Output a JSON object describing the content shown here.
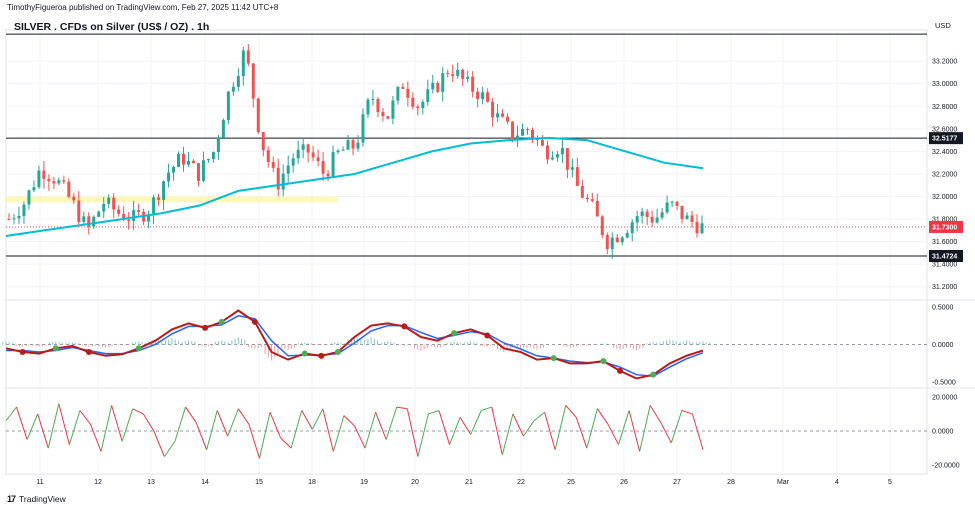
{
  "header": {
    "published": "TimothyFigueroa published on TradingView.com, Feb 27, 2025 11:42 UTC+8",
    "title": "SILVER . CFDs on Silver (US$ / OZ) . 1h",
    "currency": "USD"
  },
  "footer": {
    "brand": "TradingView",
    "logo_glyph": "17"
  },
  "colors": {
    "up": "#26a69a",
    "down": "#ef5350",
    "ma": "#00bcd4",
    "level": "#131722",
    "zone": "#fff59d",
    "price_tag": "#f23645",
    "osc_green": "#4caf50",
    "osc_red": "#b71c1c",
    "osc_blue": "#2962ff"
  },
  "chart_data": [
    {
      "type": "candlestick",
      "title": "SILVER . CFDs on Silver (US$ / OZ) . 1h",
      "x_ticks": [
        "11",
        "12",
        "13",
        "14",
        "15",
        "18",
        "19",
        "20",
        "21",
        "22",
        "25",
        "26",
        "27",
        "28",
        "Mar",
        "4",
        "5"
      ],
      "y_ticks": [
        "33.2000",
        "33.0000",
        "32.8000",
        "32.6000",
        "32.4000",
        "32.2000",
        "32.0000",
        "31.8000",
        "31.6000",
        "31.4000",
        "31.2000"
      ],
      "ylim": [
        31.1,
        33.45
      ],
      "last_price": 31.73,
      "last_price_label": "31.7300",
      "levels": [
        {
          "value": 33.44,
          "label": ""
        },
        {
          "value": 32.5177,
          "label": "32.5177"
        },
        {
          "value": 31.4724,
          "label": "31.4724"
        }
      ],
      "zone": {
        "from": 31.95,
        "to": 32.0
      },
      "close_path": [
        31.8,
        31.95,
        32.25,
        32.15,
        31.95,
        31.7,
        31.95,
        31.85,
        31.8,
        31.9,
        32.2,
        32.35,
        32.2,
        32.4,
        32.95,
        33.3,
        32.5,
        32.1,
        32.35,
        32.4,
        32.2,
        32.4,
        32.45,
        32.9,
        32.7,
        33.0,
        32.8,
        32.95,
        33.15,
        33.0,
        32.9,
        32.7,
        32.55,
        32.6,
        32.4,
        32.45,
        32.1,
        31.9,
        31.6,
        31.7,
        31.85,
        31.8,
        31.93,
        31.8,
        31.73
      ],
      "ma_path": [
        31.65,
        31.7,
        31.75,
        31.8,
        31.85,
        31.92,
        32.05,
        32.1,
        32.15,
        32.2,
        32.3,
        32.4,
        32.47,
        32.5,
        32.52,
        32.5,
        32.4,
        32.3,
        32.25
      ]
    },
    {
      "type": "line",
      "y_ticks": [
        "0.5000",
        "0.0000",
        "-0.5000"
      ],
      "ylim": [
        -0.55,
        0.55
      ],
      "series": [
        {
          "values": [
            -0.05,
            -0.1,
            -0.12,
            -0.05,
            -0.02,
            -0.1,
            -0.15,
            -0.13,
            -0.05,
            0.05,
            0.2,
            0.28,
            0.22,
            0.3,
            0.45,
            0.3,
            -0.1,
            -0.2,
            -0.12,
            -0.15,
            -0.1,
            0.1,
            0.25,
            0.28,
            0.24,
            0.1,
            0.05,
            0.15,
            0.2,
            0.12,
            -0.05,
            -0.1,
            -0.2,
            -0.18,
            -0.25,
            -0.25,
            -0.22,
            -0.35,
            -0.45,
            -0.4,
            -0.25,
            -0.15,
            -0.08
          ]
        },
        {
          "values": [
            -0.08,
            -0.08,
            -0.1,
            -0.08,
            -0.04,
            -0.08,
            -0.12,
            -0.12,
            -0.08,
            0.0,
            0.14,
            0.24,
            0.24,
            0.26,
            0.38,
            0.34,
            0.05,
            -0.15,
            -0.14,
            -0.14,
            -0.12,
            0.02,
            0.18,
            0.25,
            0.25,
            0.16,
            0.08,
            0.12,
            0.17,
            0.14,
            0.02,
            -0.06,
            -0.15,
            -0.18,
            -0.22,
            -0.24,
            -0.23,
            -0.3,
            -0.4,
            -0.42,
            -0.3,
            -0.19,
            -0.11
          ]
        }
      ]
    },
    {
      "type": "line",
      "y_ticks": [
        "20.0000",
        "0.0000",
        "-20.0000"
      ],
      "ylim": [
        -24,
        24
      ],
      "series": [
        {
          "values": [
            6,
            14,
            -5,
            10,
            -10,
            16,
            -8,
            12,
            4,
            -12,
            15,
            -6,
            13,
            10,
            0,
            -15,
            -6,
            14,
            5,
            -11,
            12,
            -3,
            13,
            4,
            -16,
            11,
            -4,
            -10,
            12,
            1,
            13,
            -12,
            9,
            3,
            -10,
            11,
            -5,
            14,
            13,
            -15,
            10,
            12,
            -8,
            8,
            -2,
            12,
            14,
            -14,
            10,
            -3,
            6,
            11,
            -11,
            15,
            8,
            -10,
            13,
            4,
            -8,
            12,
            -12,
            15,
            5,
            -7,
            12,
            10,
            -11
          ]
        }
      ]
    }
  ]
}
